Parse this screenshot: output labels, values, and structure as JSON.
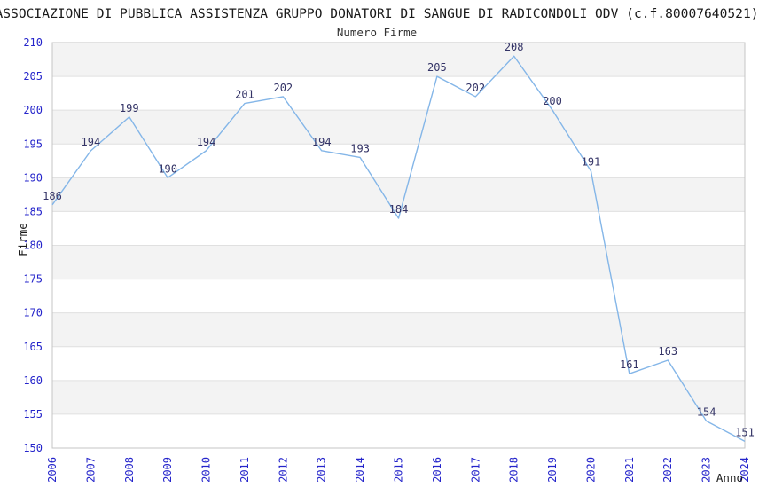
{
  "chart_data": {
    "type": "line",
    "title": "ASSOCIAZIONE DI PUBBLICA ASSISTENZA GRUPPO DONATORI DI SANGUE DI RADICONDOLI ODV (c.f.80007640521)",
    "subtitle": "Numero Firme",
    "xlabel": "Anno",
    "ylabel": "Firme",
    "categories": [
      "2006",
      "2007",
      "2008",
      "2009",
      "2010",
      "2011",
      "2012",
      "2013",
      "2014",
      "2015",
      "2016",
      "2017",
      "2018",
      "2019",
      "2020",
      "2021",
      "2022",
      "2023",
      "2024"
    ],
    "series": [
      {
        "name": "Numero Firme",
        "values": [
          186,
          194,
          199,
          190,
          194,
          201,
          202,
          194,
          193,
          184,
          205,
          202,
          208,
          200,
          191,
          161,
          163,
          154,
          151
        ]
      }
    ],
    "ylim": [
      150,
      210
    ],
    "ytick_step": 5,
    "yticks": [
      150,
      155,
      160,
      165,
      170,
      175,
      180,
      185,
      190,
      195,
      200,
      205,
      210
    ],
    "grid": "horizontal-bands-alternating",
    "legend": "none",
    "data_labels": true,
    "colors": {
      "line": "#84b6e8",
      "tick_label": "#2525cb",
      "data_label": "#333366",
      "band_fill": "#f3f3f3",
      "gridline": "#e0e0e0",
      "plot_border": "#c4c4c4",
      "title_text": "#1a1a1a"
    }
  }
}
